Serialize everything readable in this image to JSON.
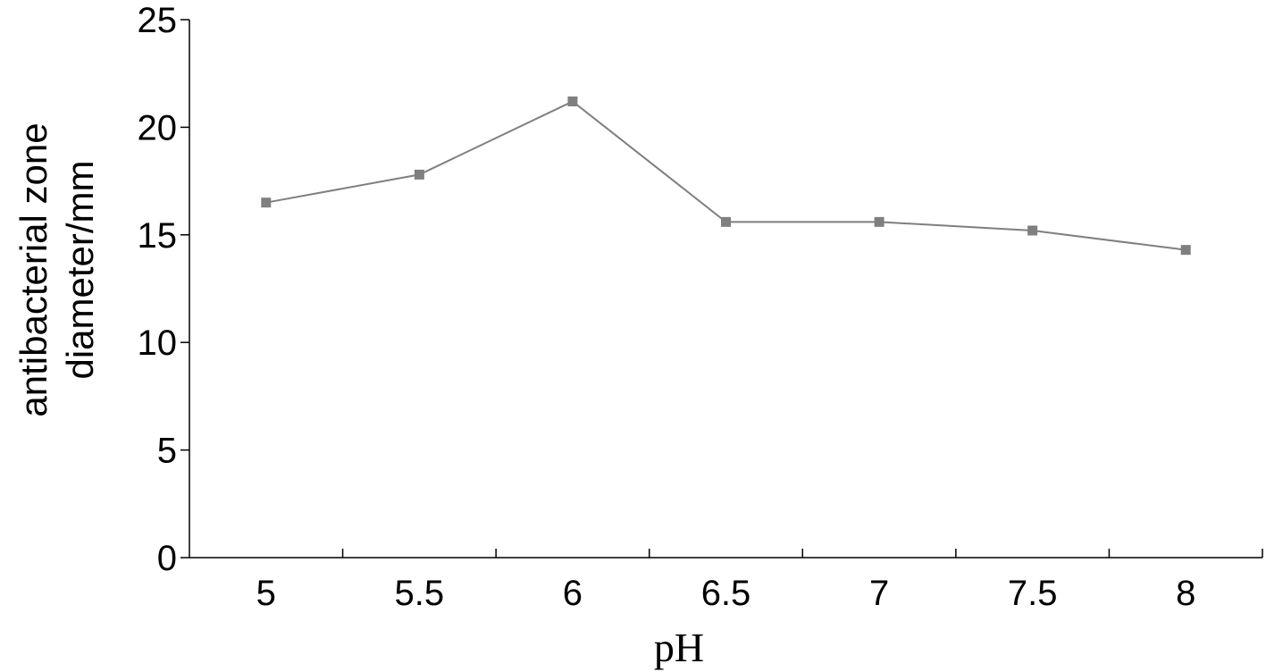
{
  "chart_data": {
    "type": "line",
    "title": "",
    "xlabel": "pH",
    "ylabel_lines": [
      "antibacterial zone",
      "diameter/mm"
    ],
    "categories": [
      "5",
      "5.5",
      "6",
      "6.5",
      "7",
      "7.5",
      "8"
    ],
    "ylim": [
      0,
      25
    ],
    "yticks": [
      "0",
      "5",
      "10",
      "15",
      "20",
      "25"
    ],
    "grid": false,
    "legend": "none",
    "series": [
      {
        "values": [
          16.5,
          17.8,
          21.2,
          15.6,
          15.6,
          15.2,
          14.3
        ],
        "color": "#7f7f7f",
        "marker": "square"
      }
    ]
  }
}
